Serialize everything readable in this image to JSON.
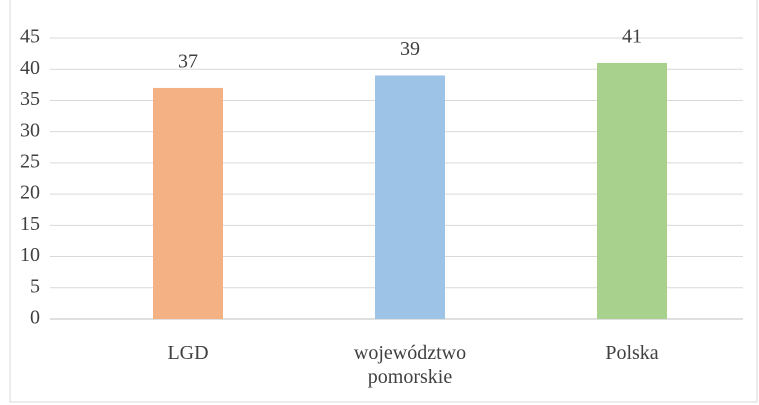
{
  "chart_data": {
    "type": "bar",
    "categories": [
      "LGD",
      "województwo pomorskie",
      "Polska"
    ],
    "values": [
      37,
      39,
      41
    ],
    "colors": [
      "#f4b183",
      "#9dc3e6",
      "#a9d18e"
    ],
    "ylim": [
      0,
      45
    ],
    "yticks": [
      0,
      5,
      10,
      15,
      20,
      25,
      30,
      35,
      40,
      45
    ],
    "grid": true
  }
}
